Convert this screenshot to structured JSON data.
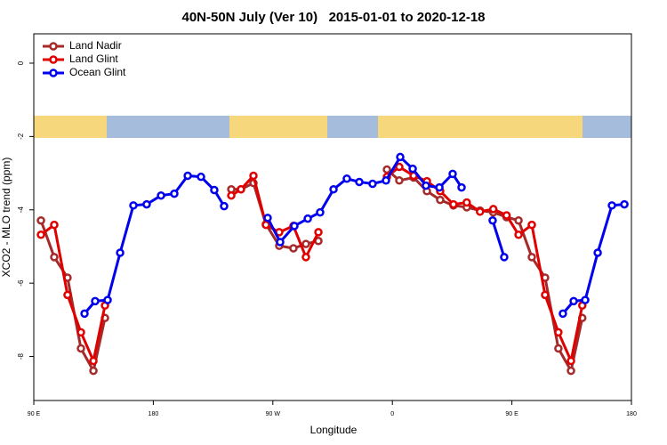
{
  "chart_data": {
    "type": "line",
    "title": "40N-50N July (Ver 10)   2015-01-01 to 2020-12-18",
    "x_label": "Longitude",
    "y_label": "XCO2 - MLO trend (ppm)",
    "xlim": [
      90,
      540
    ],
    "ylim": [
      -9.2,
      0.8
    ],
    "xticks": [
      {
        "value": 90,
        "label": "90 E"
      },
      180,
      {
        "value": 270,
        "label": "90 W"
      },
      {
        "value": 360,
        "label": "0"
      },
      {
        "value": 450,
        "label": "90 E"
      },
      {
        "value": 540,
        "label": "180"
      }
    ],
    "yticks": [
      0,
      -2,
      -4,
      -6,
      -8
    ],
    "legend": "top-left",
    "series": [
      {
        "name": "Land Nadir",
        "color": "#a52a2a",
        "x": [
          95.4,
          105.4,
          115.4,
          125.5,
          134.9,
          143.6,
          null,
          238.7,
          246,
          255.4,
          264.8,
          274.8,
          285.5,
          294.9,
          304.3,
          null,
          355.9,
          365.2,
          376,
          386,
          396,
          406,
          416,
          426,
          436,
          446,
          455,
          465,
          475,
          485,
          494.5,
          503
        ],
        "values": [
          -4.29,
          -5.29,
          -5.85,
          -7.78,
          -8.39,
          -6.95,
          null,
          -3.44,
          -3.44,
          -3.27,
          -4.39,
          -4.98,
          -5.05,
          -4.93,
          -4.85,
          null,
          -2.9,
          -3.2,
          -3.12,
          -3.49,
          -3.73,
          -3.88,
          -3.93,
          -4.02,
          -4.07,
          -4.2,
          -4.29,
          -5.29,
          -5.85,
          -7.78,
          -8.39,
          -6.95
        ]
      },
      {
        "name": "Land Glint",
        "color": "#e00000",
        "x": [
          95.4,
          105.4,
          115.4,
          125.5,
          134.9,
          143.6,
          null,
          238.7,
          246,
          255.4,
          264.8,
          274.8,
          285.5,
          294.9,
          304.3,
          null,
          355.9,
          365.2,
          376,
          386,
          396,
          406,
          416,
          426,
          436,
          446,
          455,
          465,
          475,
          485,
          494.5,
          503
        ],
        "values": [
          -4.68,
          -4.41,
          -6.32,
          -7.34,
          -8.12,
          -6.61,
          null,
          -3.61,
          -3.44,
          -3.07,
          -4.41,
          -4.61,
          -4.44,
          -5.29,
          -4.61,
          null,
          -3.1,
          -2.83,
          -3.07,
          -3.22,
          -3.49,
          -3.85,
          -3.8,
          -4.05,
          -3.98,
          -4.15,
          -4.68,
          -4.41,
          -6.32,
          -7.34,
          -8.12,
          -6.61
        ]
      },
      {
        "name": "Ocean Glint",
        "color": "#0000ee",
        "x": [
          128.2,
          136.2,
          145.6,
          155,
          165,
          175,
          185.8,
          195.8,
          205.9,
          215.9,
          225.9,
          233.3,
          null,
          266.1,
          275.5,
          286.2,
          296.3,
          305.6,
          315.7,
          325.7,
          335.1,
          345.1,
          355.2,
          365.9,
          375.3,
          385.3,
          395.4,
          405.4,
          412.1,
          null,
          435.5,
          444.2,
          null,
          488.4,
          496.5,
          505.2,
          514.6,
          525.3,
          534.7
        ],
        "values": [
          -6.83,
          -6.49,
          -6.46,
          -5.17,
          -3.88,
          -3.85,
          -3.61,
          -3.56,
          -3.07,
          -3.1,
          -3.46,
          -3.9,
          null,
          -4.22,
          -4.88,
          -4.44,
          -4.24,
          -4.07,
          -3.44,
          -3.15,
          -3.24,
          -3.29,
          -3.2,
          -2.56,
          -2.88,
          -3.34,
          -3.39,
          -3.02,
          -3.39,
          null,
          -4.29,
          -5.29,
          null,
          -6.83,
          -6.49,
          -6.46,
          -5.17,
          -3.88,
          -3.85
        ]
      }
    ]
  }
}
